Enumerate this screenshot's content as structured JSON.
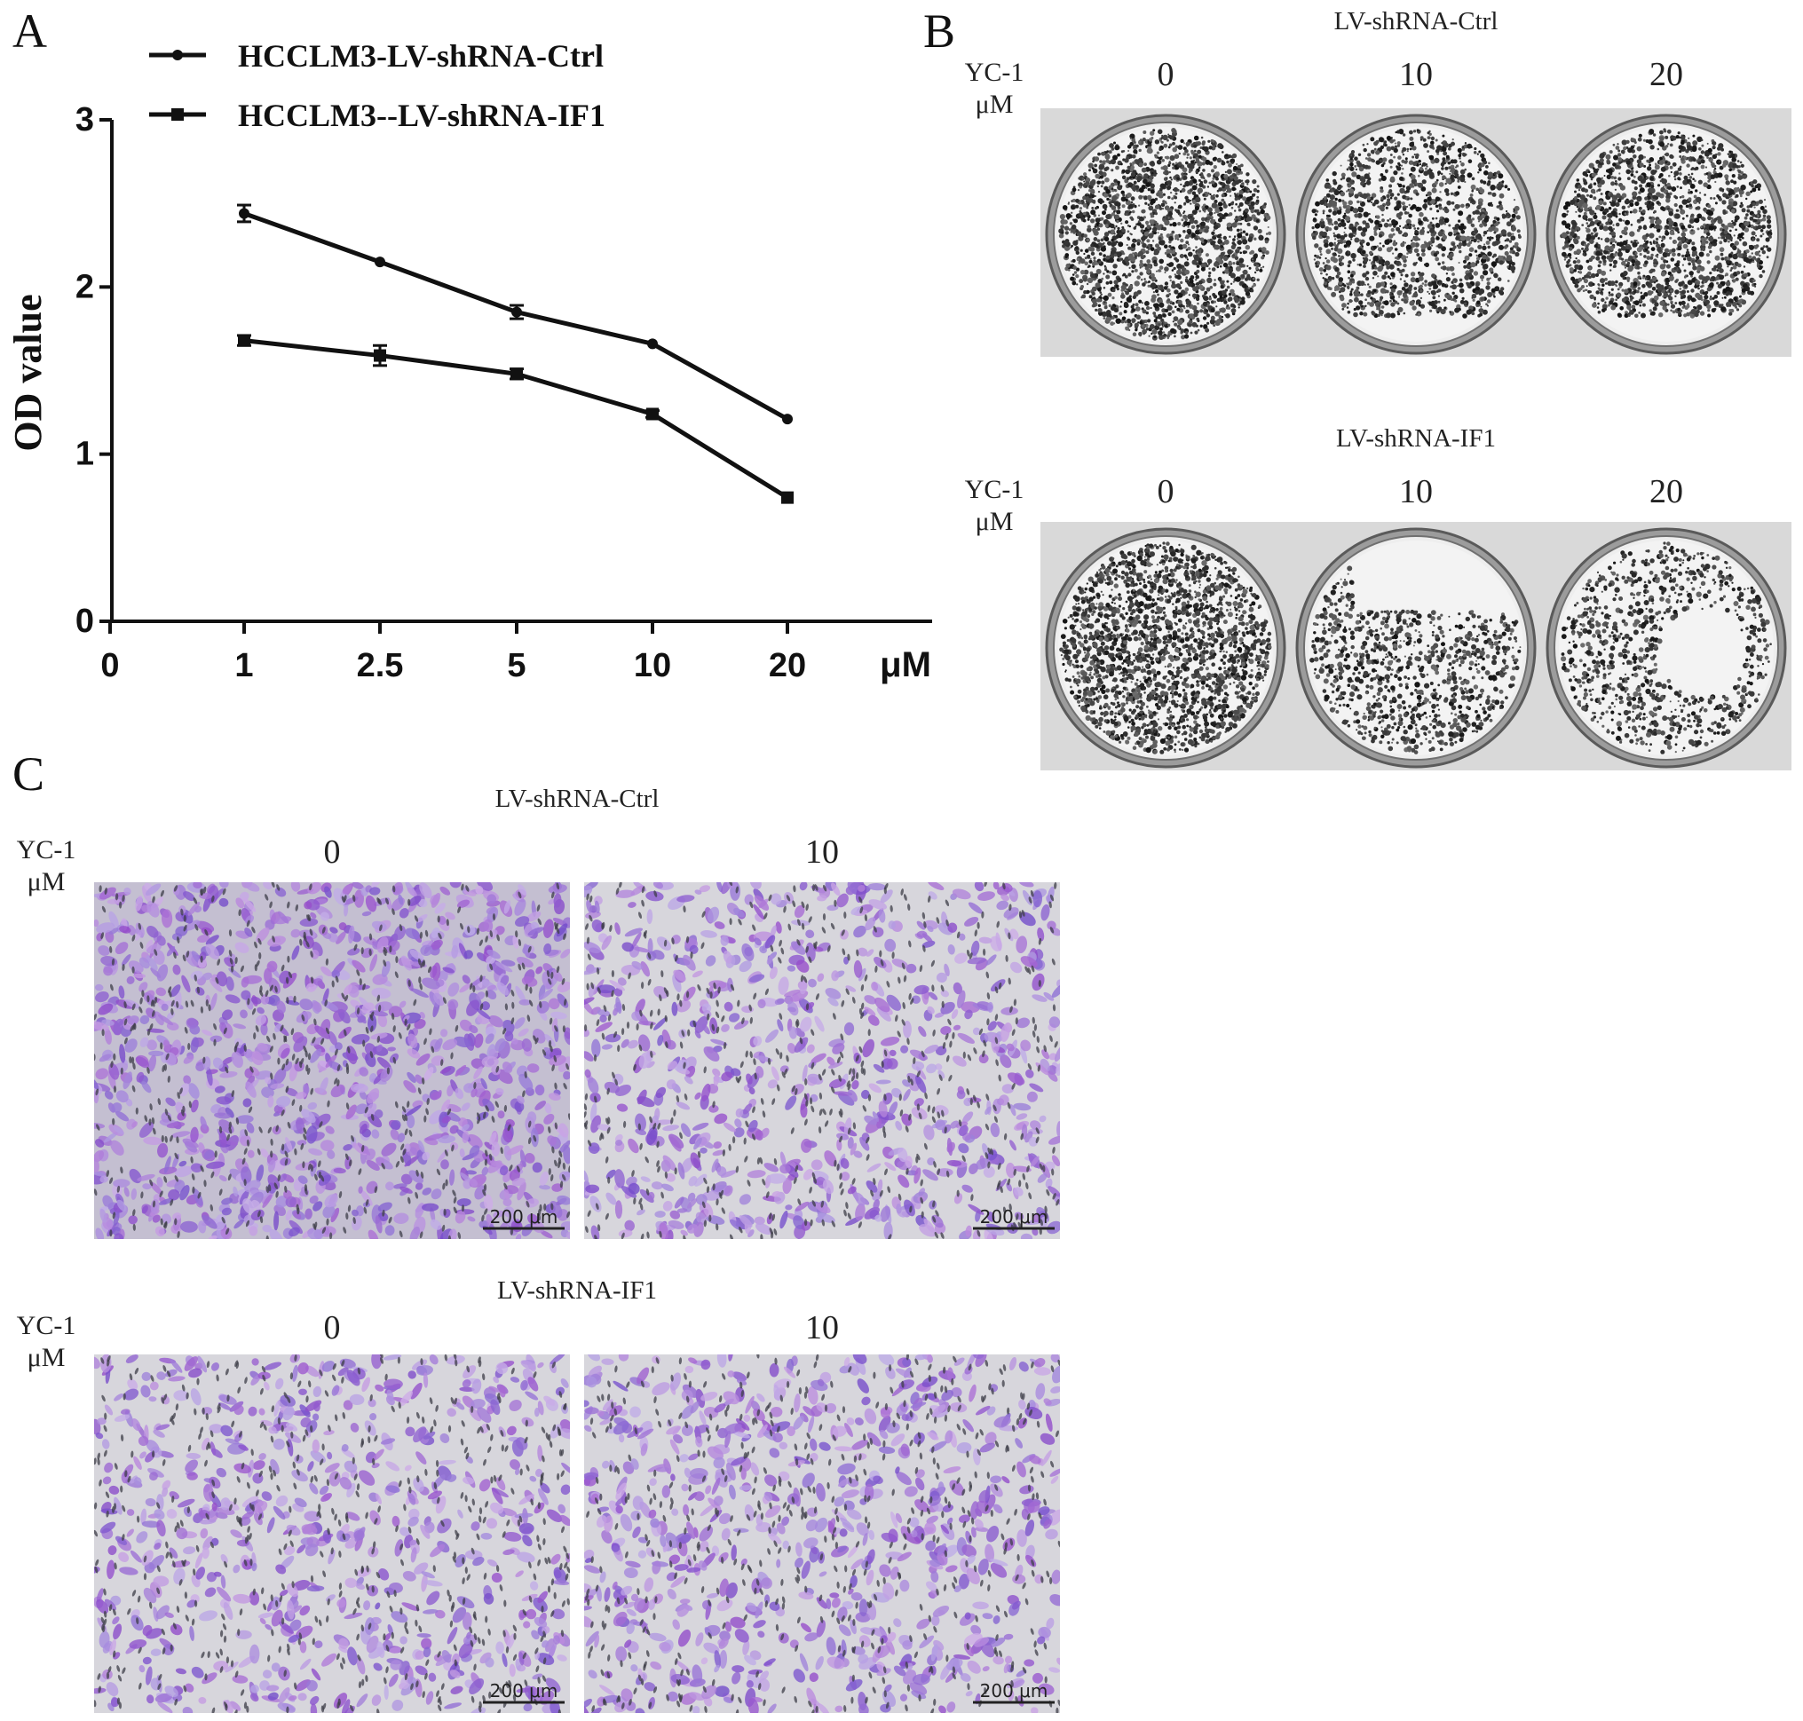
{
  "panels": {
    "a": "A",
    "b": "B",
    "c": "C"
  },
  "chart_data": {
    "type": "line",
    "x": [
      "1",
      "2.5",
      "5",
      "10",
      "20"
    ],
    "xticks": [
      "0",
      "1",
      "2.5",
      "5",
      "10",
      "20"
    ],
    "x_unit": "μM",
    "ylabel": "OD value",
    "yticks": [
      "0",
      "1",
      "2",
      "3"
    ],
    "ylim": [
      0,
      3
    ],
    "series": [
      {
        "name": "HCCLM3-LV-shRNA-Ctrl",
        "marker": "circle",
        "values": [
          2.44,
          2.15,
          1.85,
          1.66,
          1.21
        ],
        "errors": [
          0.05,
          0.01,
          0.04,
          0.01,
          0.01
        ]
      },
      {
        "name": "HCCLM3--LV-shRNA-IF1",
        "marker": "square",
        "values": [
          1.68,
          1.59,
          1.48,
          1.24,
          0.74
        ],
        "errors": [
          0.03,
          0.06,
          0.03,
          0.02,
          0.01
        ]
      }
    ],
    "legend_position": "top"
  },
  "panel_b": {
    "groups": [
      {
        "title": "LV-shRNA-Ctrl",
        "yc_line1": "YC-1",
        "yc_line2": "μM",
        "doses": [
          "0",
          "10",
          "20"
        ]
      },
      {
        "title": "LV-shRNA-IF1",
        "yc_line1": "YC-1",
        "yc_line2": "μM",
        "doses": [
          "0",
          "10",
          "20"
        ]
      }
    ]
  },
  "panel_c": {
    "scale_bar": "200 μm",
    "groups": [
      {
        "title": "LV-shRNA-Ctrl",
        "yc_line1": "YC-1",
        "yc_line2": "μM",
        "doses": [
          "0",
          "10"
        ]
      },
      {
        "title": "LV-shRNA-IF1",
        "yc_line1": "YC-1",
        "yc_line2": "μM",
        "doses": [
          "0",
          "10"
        ]
      }
    ]
  },
  "colors": {
    "line": "#111111",
    "dish_bg": "#d9d9d9",
    "stain_purple": "#8a5fd0",
    "membrane": "#cfcfd6"
  }
}
